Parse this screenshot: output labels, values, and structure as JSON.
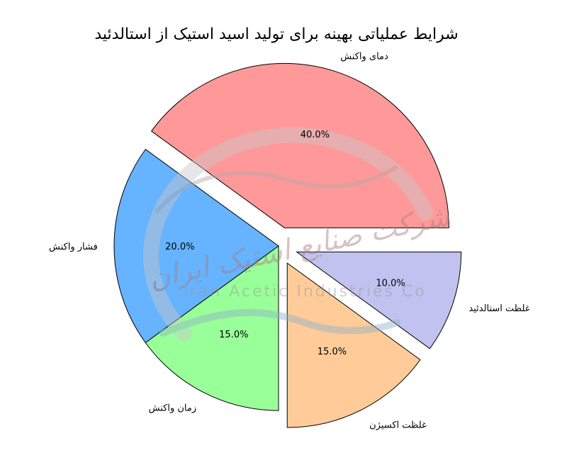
{
  "chart_data": {
    "type": "pie",
    "title": "شرایط عملیاتی بهینه برای تولید اسید استیک از استالدئید",
    "slices": [
      {
        "label": "دمای واکنش",
        "value": 40.0,
        "pct_label": "40.0%",
        "color": "#ff9999",
        "exploded": true
      },
      {
        "label": "فشار واکنش",
        "value": 20.0,
        "pct_label": "20.0%",
        "color": "#66b3ff",
        "exploded": false
      },
      {
        "label": "زمان واکنش",
        "value": 15.0,
        "pct_label": "15.0%",
        "color": "#99ff99",
        "exploded": false
      },
      {
        "label": "غلظت اکسیژن",
        "value": 15.0,
        "pct_label": "15.0%",
        "color": "#ffcc99",
        "exploded": true
      },
      {
        "label": "غلظت استالدئید",
        "value": 10.0,
        "pct_label": "10.0%",
        "color": "#c2c2f0",
        "exploded": true
      }
    ]
  },
  "watermark": {
    "persian": "شرکت صنایع استیک ایران",
    "english": "Iran Acetic Industries Co"
  }
}
